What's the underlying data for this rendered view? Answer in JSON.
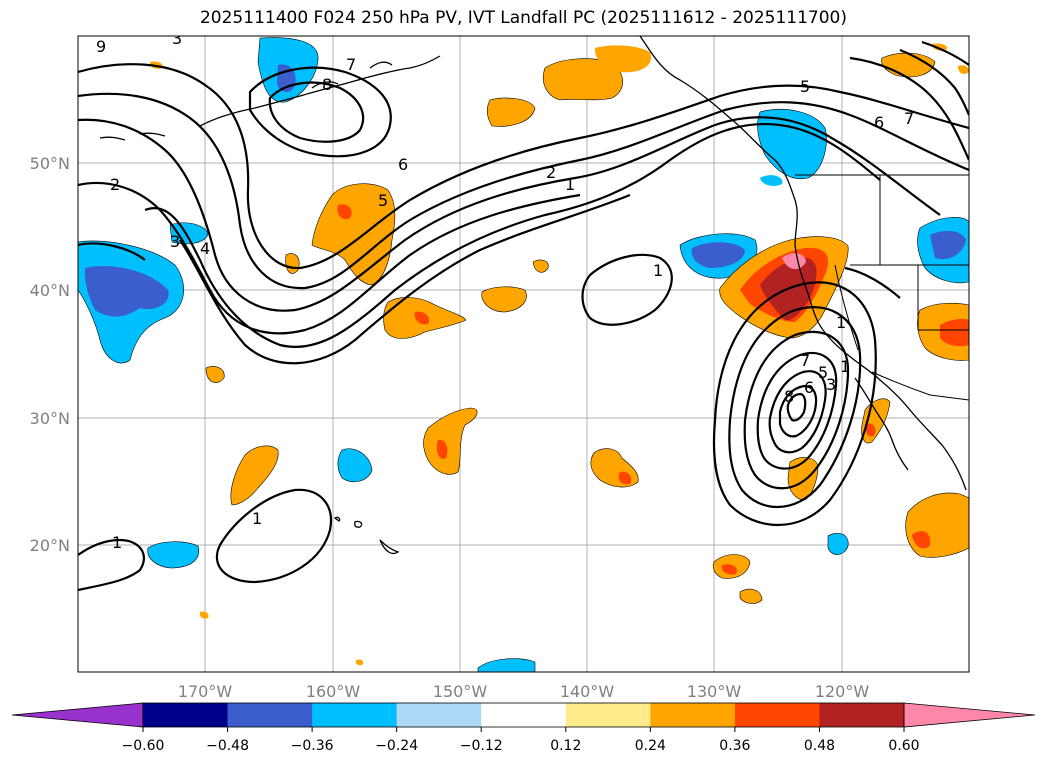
{
  "title": "2025111400 F024 250 hPa PV, IVT Landfall PC (2025111612 - 2025111700)",
  "map": {
    "projection": "PlateCarree",
    "lon_range": [
      -180,
      -110
    ],
    "lat_range": [
      10,
      60
    ],
    "lat_labels": [
      "20°N",
      "30°N",
      "40°N",
      "50°N"
    ],
    "lon_labels": [
      "170°W",
      "160°W",
      "150°W",
      "140°W",
      "130°W",
      "120°W"
    ],
    "contour_labels": [
      "9",
      "3",
      "8",
      "7",
      "2",
      "3",
      "4",
      "6",
      "5",
      "2",
      "1",
      "1",
      "1",
      "1",
      "5",
      "6",
      "7",
      "8",
      "6",
      "5",
      "3",
      "7",
      "1",
      "1"
    ]
  },
  "colorbar": {
    "colors": [
      "#9932cc",
      "#00008b",
      "#3a5fcd",
      "#00bfff",
      "#add8f5",
      "#ffffff",
      "#ffeb8c",
      "#ffa500",
      "#ff4500",
      "#b22222",
      "#ff88aa"
    ],
    "ticks": [
      "−0.60",
      "−0.48",
      "−0.36",
      "−0.24",
      "−0.12",
      "0.12",
      "0.24",
      "0.36",
      "0.48",
      "0.60"
    ]
  }
}
